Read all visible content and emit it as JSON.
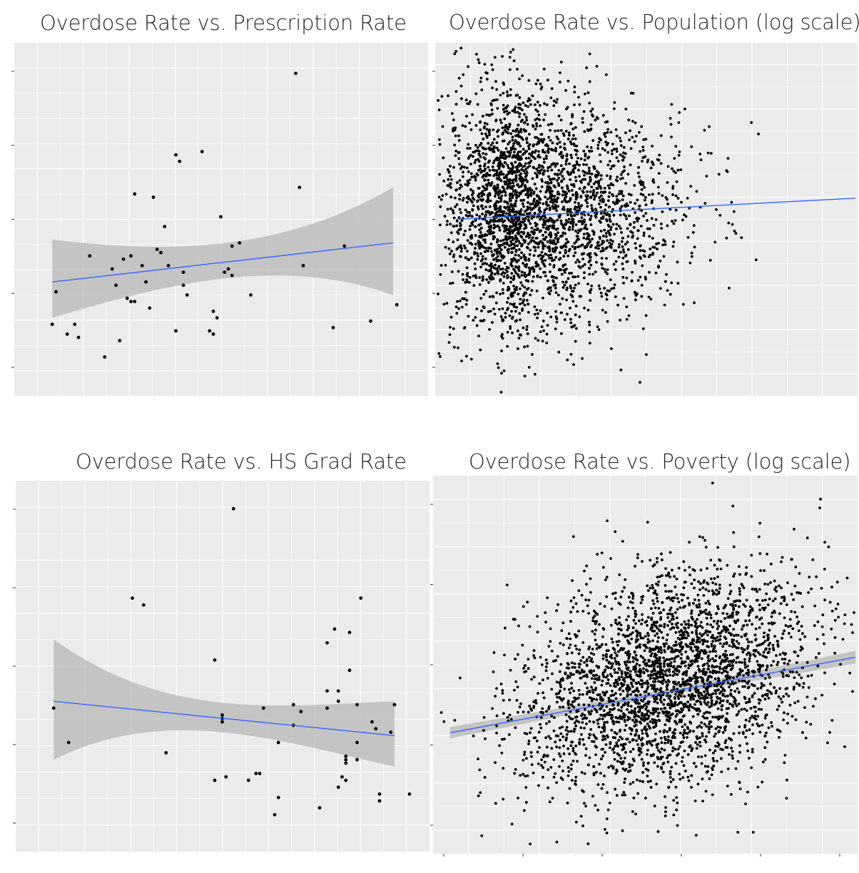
{
  "colors": {
    "panel_bg": "#ebebeb",
    "grid": "#ffffff",
    "point": "#000000",
    "trend": "#3366ff",
    "band": "#bdbdbd"
  },
  "chart_data": [
    {
      "type": "scatter",
      "title": "Overdose Rate vs. Prescription Rate",
      "xlabel": "",
      "ylabel": "",
      "xlim": [
        0,
        100
      ],
      "ylim": [
        0,
        100
      ],
      "grid": true,
      "smooth": {
        "method": "lm",
        "x": [
          5,
          96
        ],
        "y": [
          31,
          43
        ],
        "band_upper": [
          44,
          60
        ],
        "band_lower": [
          20,
          27
        ]
      },
      "points": [
        [
          5,
          18
        ],
        [
          6,
          28
        ],
        [
          9,
          15
        ],
        [
          11,
          18
        ],
        [
          12,
          14
        ],
        [
          15,
          39
        ],
        [
          19,
          8
        ],
        [
          21,
          35
        ],
        [
          22,
          30
        ],
        [
          23,
          13
        ],
        [
          24,
          38
        ],
        [
          25,
          26
        ],
        [
          26,
          39
        ],
        [
          26,
          25
        ],
        [
          27,
          58
        ],
        [
          27,
          25
        ],
        [
          29,
          36
        ],
        [
          30,
          31
        ],
        [
          31,
          23
        ],
        [
          32,
          57
        ],
        [
          33,
          41
        ],
        [
          34,
          40
        ],
        [
          35,
          48
        ],
        [
          36,
          36
        ],
        [
          38,
          70
        ],
        [
          38,
          16
        ],
        [
          39,
          68
        ],
        [
          40,
          30
        ],
        [
          40,
          34
        ],
        [
          41,
          27
        ],
        [
          45,
          71
        ],
        [
          47,
          16
        ],
        [
          48,
          15
        ],
        [
          48,
          22
        ],
        [
          49,
          20
        ],
        [
          50,
          51
        ],
        [
          51,
          34
        ],
        [
          52,
          35
        ],
        [
          53,
          42
        ],
        [
          53,
          33
        ],
        [
          55,
          43
        ],
        [
          58,
          27
        ],
        [
          70,
          95
        ],
        [
          71,
          60
        ],
        [
          72,
          36
        ],
        [
          80,
          17
        ],
        [
          83,
          42
        ],
        [
          90,
          19
        ],
        [
          97,
          24
        ]
      ]
    },
    {
      "type": "scatter",
      "title": "Overdose Rate vs. Population (log scale)",
      "xlabel": "",
      "ylabel": "",
      "xscale": "log",
      "grid": true,
      "n_points_approx": 3000,
      "smooth": {
        "method": "lm",
        "x_frac": [
          0.05,
          0.995
        ],
        "y_frac": [
          0.5,
          0.56
        ]
      }
    },
    {
      "type": "scatter",
      "title": "Overdose Rate vs. HS Grad Rate",
      "xlabel": "",
      "ylabel": "",
      "xlim": [
        0,
        100
      ],
      "ylim": [
        0,
        100
      ],
      "grid": true,
      "smooth": {
        "method": "lm",
        "x": [
          5,
          96
        ],
        "y": [
          40,
          30
        ],
        "band_upper": [
          58,
          40
        ],
        "band_lower": [
          23,
          21
        ]
      },
      "points": [
        [
          5,
          38
        ],
        [
          9,
          28
        ],
        [
          26,
          70
        ],
        [
          29,
          68
        ],
        [
          35,
          25
        ],
        [
          48,
          52
        ],
        [
          48,
          17
        ],
        [
          50,
          34
        ],
        [
          50,
          35
        ],
        [
          50,
          36
        ],
        [
          51,
          18
        ],
        [
          53,
          96
        ],
        [
          57,
          17
        ],
        [
          59,
          19
        ],
        [
          60,
          19
        ],
        [
          61,
          38
        ],
        [
          64,
          7
        ],
        [
          65,
          12
        ],
        [
          65,
          28
        ],
        [
          69,
          33
        ],
        [
          69,
          39
        ],
        [
          71,
          37
        ],
        [
          76,
          9
        ],
        [
          78,
          57
        ],
        [
          78,
          43
        ],
        [
          78,
          38
        ],
        [
          80,
          61
        ],
        [
          81,
          15
        ],
        [
          81,
          43
        ],
        [
          81,
          40
        ],
        [
          82,
          18
        ],
        [
          83,
          22
        ],
        [
          83,
          23
        ],
        [
          83,
          24
        ],
        [
          83,
          17
        ],
        [
          84,
          60
        ],
        [
          84,
          49
        ],
        [
          86,
          28
        ],
        [
          86,
          39
        ],
        [
          86,
          23
        ],
        [
          87,
          70
        ],
        [
          90,
          34
        ],
        [
          91,
          32
        ],
        [
          92,
          13
        ],
        [
          92,
          11
        ],
        [
          95,
          31
        ],
        [
          96,
          39
        ],
        [
          100,
          13
        ]
      ]
    },
    {
      "type": "scatter",
      "title": "Overdose Rate vs. Poverty (log scale)",
      "xlabel": "",
      "ylabel": "",
      "xscale": "log",
      "grid": true,
      "n_points_approx": 3000,
      "smooth": {
        "method": "lm",
        "x_frac": [
          0.04,
          0.995
        ],
        "y_frac": [
          0.32,
          0.52
        ]
      }
    }
  ]
}
